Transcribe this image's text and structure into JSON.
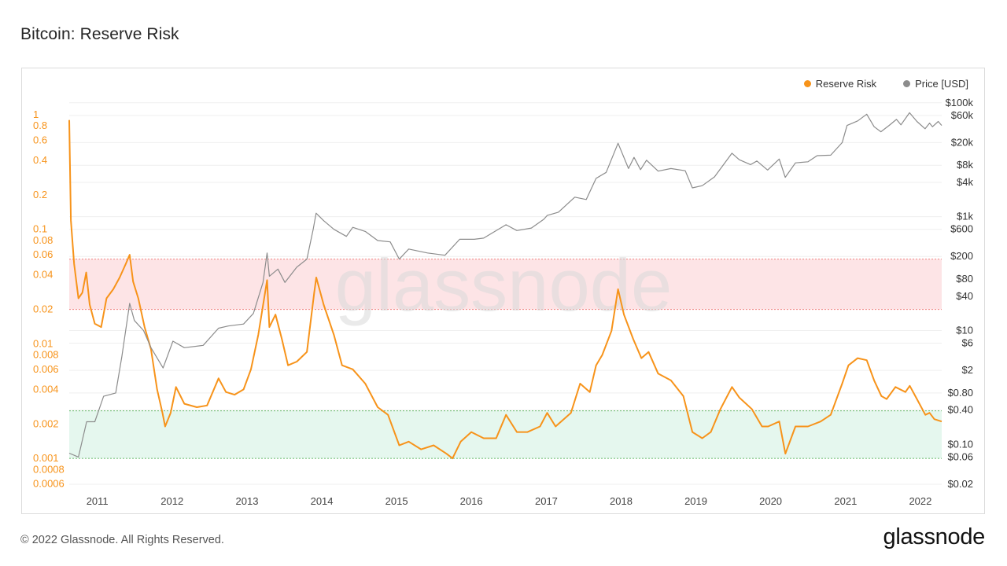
{
  "header": {
    "title": "Bitcoin: Reserve Risk"
  },
  "legend": [
    {
      "label": "Reserve Risk",
      "color": "#f7931a"
    },
    {
      "label": "Price [USD]",
      "color": "#8c8c8c"
    }
  ],
  "watermark": "glassnode",
  "footer": {
    "copyright": "© 2022 Glassnode. All Rights Reserved.",
    "brand": "glassnode"
  },
  "chart_data": {
    "type": "line",
    "title": "Bitcoin: Reserve Risk",
    "x_ticks": [
      "2011",
      "2012",
      "2013",
      "2014",
      "2015",
      "2016",
      "2017",
      "2018",
      "2019",
      "2020",
      "2021",
      "2022"
    ],
    "x_range": [
      "2010-08-17",
      "2022-04-15"
    ],
    "left_axis": {
      "scale": "log",
      "range": [
        0.0005,
        1.1
      ],
      "ticks": [
        1,
        0.8,
        0.6,
        0.4,
        0.2,
        0.1,
        0.08,
        0.06,
        0.04,
        0.02,
        0.01,
        0.008,
        0.006,
        0.004,
        0.002,
        0.001,
        0.0008,
        0.0006
      ],
      "tick_labels": [
        "1",
        "0.8",
        "0.6",
        "0.4",
        "0.2",
        "0.1",
        "0.08",
        "0.06",
        "0.04",
        "0.02",
        "0.01",
        "0.008",
        "0.006",
        "0.004",
        "0.002",
        "0.001",
        "0.0008",
        "0.0006"
      ]
    },
    "right_axis": {
      "scale": "log",
      "range": [
        0.015,
        150000
      ],
      "ticks": [
        100000,
        60000,
        20000,
        8000,
        4000,
        1000,
        600,
        200,
        80,
        40,
        10,
        6,
        2,
        0.8,
        0.4,
        0.1,
        0.06,
        0.02
      ],
      "tick_labels": [
        "$100k",
        "$60k",
        "$20k",
        "$8k",
        "$4k",
        "$1k",
        "$600",
        "$200",
        "$80",
        "$40",
        "$10",
        "$6",
        "$2",
        "$0.80",
        "$0.40",
        "$0.10",
        "$0.06",
        "$0.02"
      ]
    },
    "bands": [
      {
        "name": "high-risk",
        "from": 0.02,
        "to": 0.055,
        "fill": "#fde4e6",
        "border": "#f08080"
      },
      {
        "name": "low-risk",
        "from": 0.001,
        "to": 0.0026,
        "fill": "#e5f7ee",
        "border": "#66bb6a"
      }
    ],
    "series": [
      {
        "name": "Reserve Risk",
        "axis": "left",
        "color": "#f7931a",
        "points": [
          [
            "2010-08-17",
            0.9
          ],
          [
            "2010-08-25",
            0.12
          ],
          [
            "2010-09-10",
            0.05
          ],
          [
            "2010-10-01",
            0.025
          ],
          [
            "2010-10-20",
            0.028
          ],
          [
            "2010-11-08",
            0.042
          ],
          [
            "2010-11-25",
            0.022
          ],
          [
            "2010-12-20",
            0.015
          ],
          [
            "2011-01-20",
            0.014
          ],
          [
            "2011-02-15",
            0.025
          ],
          [
            "2011-03-20",
            0.03
          ],
          [
            "2011-04-20",
            0.038
          ],
          [
            "2011-05-20",
            0.05
          ],
          [
            "2011-06-08",
            0.06
          ],
          [
            "2011-06-25",
            0.035
          ],
          [
            "2011-07-20",
            0.025
          ],
          [
            "2011-08-20",
            0.014
          ],
          [
            "2011-09-20",
            0.009
          ],
          [
            "2011-10-20",
            0.004
          ],
          [
            "2011-11-15",
            0.0025
          ],
          [
            "2011-11-28",
            0.0019
          ],
          [
            "2011-12-25",
            0.0025
          ],
          [
            "2012-01-20",
            0.0042
          ],
          [
            "2012-03-01",
            0.003
          ],
          [
            "2012-05-01",
            0.0028
          ],
          [
            "2012-06-20",
            0.0029
          ],
          [
            "2012-08-15",
            0.005
          ],
          [
            "2012-09-20",
            0.0038
          ],
          [
            "2012-11-01",
            0.0036
          ],
          [
            "2012-12-15",
            0.004
          ],
          [
            "2013-01-20",
            0.006
          ],
          [
            "2013-02-25",
            0.012
          ],
          [
            "2013-04-09",
            0.036
          ],
          [
            "2013-04-20",
            0.014
          ],
          [
            "2013-05-20",
            0.018
          ],
          [
            "2013-06-20",
            0.011
          ],
          [
            "2013-07-20",
            0.0065
          ],
          [
            "2013-09-01",
            0.007
          ],
          [
            "2013-10-20",
            0.0085
          ],
          [
            "2013-11-25",
            0.028
          ],
          [
            "2013-12-05",
            0.038
          ],
          [
            "2014-01-10",
            0.022
          ],
          [
            "2014-03-01",
            0.012
          ],
          [
            "2014-04-10",
            0.0065
          ],
          [
            "2014-06-01",
            0.006
          ],
          [
            "2014-08-01",
            0.0045
          ],
          [
            "2014-10-01",
            0.0028
          ],
          [
            "2014-11-20",
            0.0024
          ],
          [
            "2015-01-14",
            0.0013
          ],
          [
            "2015-03-01",
            0.0014
          ],
          [
            "2015-05-01",
            0.0012
          ],
          [
            "2015-07-01",
            0.0013
          ],
          [
            "2015-09-01",
            0.0011
          ],
          [
            "2015-10-01",
            0.001
          ],
          [
            "2015-11-10",
            0.0014
          ],
          [
            "2016-01-01",
            0.0017
          ],
          [
            "2016-03-01",
            0.0015
          ],
          [
            "2016-05-01",
            0.0015
          ],
          [
            "2016-06-18",
            0.0024
          ],
          [
            "2016-08-10",
            0.0017
          ],
          [
            "2016-10-01",
            0.0017
          ],
          [
            "2016-12-01",
            0.0019
          ],
          [
            "2017-01-05",
            0.0025
          ],
          [
            "2017-02-15",
            0.0019
          ],
          [
            "2017-05-01",
            0.0025
          ],
          [
            "2017-06-15",
            0.0045
          ],
          [
            "2017-08-01",
            0.0038
          ],
          [
            "2017-09-01",
            0.0065
          ],
          [
            "2017-10-01",
            0.008
          ],
          [
            "2017-11-15",
            0.013
          ],
          [
            "2017-12-17",
            0.03
          ],
          [
            "2018-01-15",
            0.018
          ],
          [
            "2018-03-01",
            0.011
          ],
          [
            "2018-04-10",
            0.0075
          ],
          [
            "2018-05-15",
            0.0085
          ],
          [
            "2018-07-01",
            0.0055
          ],
          [
            "2018-09-01",
            0.0048
          ],
          [
            "2018-11-01",
            0.0035
          ],
          [
            "2018-12-15",
            0.0017
          ],
          [
            "2019-02-01",
            0.0015
          ],
          [
            "2019-03-15",
            0.0017
          ],
          [
            "2019-05-01",
            0.0027
          ],
          [
            "2019-06-26",
            0.0042
          ],
          [
            "2019-08-01",
            0.0034
          ],
          [
            "2019-10-01",
            0.0027
          ],
          [
            "2019-11-20",
            0.0019
          ],
          [
            "2019-12-20",
            0.0019
          ],
          [
            "2020-02-12",
            0.0021
          ],
          [
            "2020-03-13",
            0.0011
          ],
          [
            "2020-05-01",
            0.0019
          ],
          [
            "2020-07-01",
            0.0019
          ],
          [
            "2020-09-01",
            0.0021
          ],
          [
            "2020-10-20",
            0.0024
          ],
          [
            "2020-12-15",
            0.0045
          ],
          [
            "2021-01-15",
            0.0065
          ],
          [
            "2021-03-01",
            0.0075
          ],
          [
            "2021-04-14",
            0.0072
          ],
          [
            "2021-05-20",
            0.0048
          ],
          [
            "2021-06-25",
            0.0035
          ],
          [
            "2021-07-20",
            0.0033
          ],
          [
            "2021-09-01",
            0.0042
          ],
          [
            "2021-10-20",
            0.0038
          ],
          [
            "2021-11-10",
            0.0043
          ],
          [
            "2021-12-15",
            0.0033
          ],
          [
            "2022-01-25",
            0.0024
          ],
          [
            "2022-02-15",
            0.0025
          ],
          [
            "2022-03-10",
            0.0022
          ],
          [
            "2022-04-15",
            0.0021
          ]
        ]
      },
      {
        "name": "Price [USD]",
        "axis": "right",
        "color": "#8c8c8c",
        "points": [
          [
            "2010-08-17",
            0.07
          ],
          [
            "2010-10-01",
            0.06
          ],
          [
            "2010-11-10",
            0.25
          ],
          [
            "2010-12-20",
            0.25
          ],
          [
            "2011-02-01",
            0.7
          ],
          [
            "2011-04-01",
            0.8
          ],
          [
            "2011-05-01",
            3.5
          ],
          [
            "2011-06-08",
            30
          ],
          [
            "2011-07-01",
            15
          ],
          [
            "2011-08-15",
            10
          ],
          [
            "2011-09-20",
            5
          ],
          [
            "2011-11-18",
            2.2
          ],
          [
            "2012-01-05",
            6.5
          ],
          [
            "2012-03-01",
            5
          ],
          [
            "2012-06-01",
            5.5
          ],
          [
            "2012-08-15",
            11
          ],
          [
            "2012-10-01",
            12
          ],
          [
            "2012-12-15",
            13
          ],
          [
            "2013-02-01",
            20
          ],
          [
            "2013-03-20",
            70
          ],
          [
            "2013-04-09",
            230
          ],
          [
            "2013-04-20",
            90
          ],
          [
            "2013-06-01",
            120
          ],
          [
            "2013-07-05",
            70
          ],
          [
            "2013-09-01",
            130
          ],
          [
            "2013-10-20",
            180
          ],
          [
            "2013-11-20",
            600
          ],
          [
            "2013-12-04",
            1150
          ],
          [
            "2014-01-10",
            850
          ],
          [
            "2014-03-01",
            600
          ],
          [
            "2014-05-01",
            450
          ],
          [
            "2014-06-01",
            650
          ],
          [
            "2014-08-01",
            550
          ],
          [
            "2014-10-01",
            380
          ],
          [
            "2014-12-01",
            360
          ],
          [
            "2015-01-14",
            180
          ],
          [
            "2015-03-01",
            270
          ],
          [
            "2015-06-01",
            230
          ],
          [
            "2015-08-25",
            210
          ],
          [
            "2015-11-05",
            400
          ],
          [
            "2016-01-15",
            400
          ],
          [
            "2016-03-01",
            420
          ],
          [
            "2016-06-18",
            720
          ],
          [
            "2016-08-10",
            570
          ],
          [
            "2016-10-20",
            630
          ],
          [
            "2016-12-20",
            900
          ],
          [
            "2017-01-05",
            1050
          ],
          [
            "2017-03-01",
            1200
          ],
          [
            "2017-05-20",
            2200
          ],
          [
            "2017-07-15",
            2000
          ],
          [
            "2017-09-01",
            4700
          ],
          [
            "2017-10-20",
            6000
          ],
          [
            "2017-12-17",
            19500
          ],
          [
            "2018-02-06",
            7000
          ],
          [
            "2018-03-05",
            11000
          ],
          [
            "2018-04-06",
            6700
          ],
          [
            "2018-05-05",
            9800
          ],
          [
            "2018-07-01",
            6300
          ],
          [
            "2018-09-01",
            7000
          ],
          [
            "2018-11-10",
            6400
          ],
          [
            "2018-12-15",
            3200
          ],
          [
            "2019-02-01",
            3500
          ],
          [
            "2019-04-02",
            5000
          ],
          [
            "2019-06-26",
            13000
          ],
          [
            "2019-08-01",
            10000
          ],
          [
            "2019-09-25",
            8200
          ],
          [
            "2019-10-26",
            9500
          ],
          [
            "2019-12-17",
            6600
          ],
          [
            "2020-02-12",
            10300
          ],
          [
            "2020-03-12",
            4900
          ],
          [
            "2020-05-01",
            8800
          ],
          [
            "2020-07-01",
            9200
          ],
          [
            "2020-08-15",
            11800
          ],
          [
            "2020-10-20",
            12000
          ],
          [
            "2020-12-15",
            20000
          ],
          [
            "2021-01-08",
            40000
          ],
          [
            "2021-03-01",
            48000
          ],
          [
            "2021-04-14",
            63000
          ],
          [
            "2021-05-20",
            38000
          ],
          [
            "2021-06-22",
            31000
          ],
          [
            "2021-08-01",
            40000
          ],
          [
            "2021-09-06",
            51000
          ],
          [
            "2021-09-28",
            41000
          ],
          [
            "2021-11-09",
            67000
          ],
          [
            "2021-12-15",
            47000
          ],
          [
            "2022-01-24",
            35000
          ],
          [
            "2022-02-15",
            44000
          ],
          [
            "2022-03-01",
            38000
          ],
          [
            "2022-03-29",
            47000
          ],
          [
            "2022-04-15",
            40000
          ]
        ]
      }
    ]
  }
}
